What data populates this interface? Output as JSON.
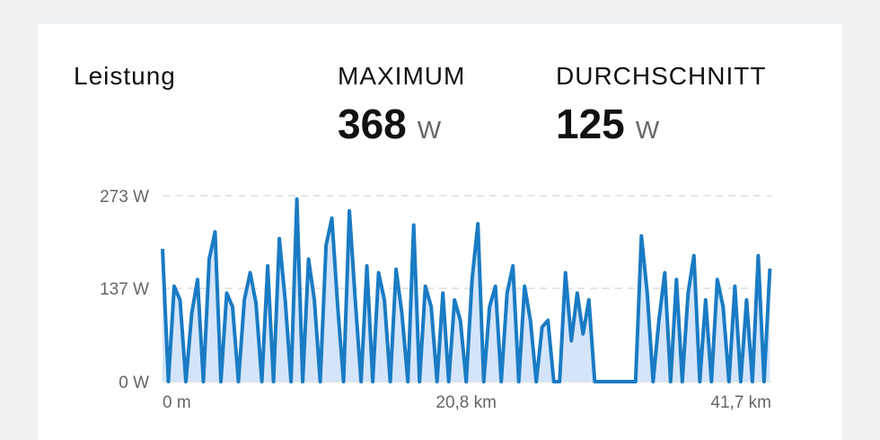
{
  "header": {
    "title": "Leistung",
    "max": {
      "label": "MAXIMUM",
      "value": "368",
      "unit": "W"
    },
    "avg": {
      "label": "DURCHSCHNITT",
      "value": "125",
      "unit": "W"
    }
  },
  "chart_data": {
    "type": "area",
    "color": "#1a7bc4",
    "fill_color": "#d4e5fb",
    "grid": true,
    "x": [
      0,
      0.4,
      0.8,
      1.2,
      1.6,
      2.0,
      2.4,
      2.8,
      3.2,
      3.6,
      4.0,
      4.4,
      4.8,
      5.2,
      5.6,
      6.0,
      6.4,
      6.8,
      7.2,
      7.6,
      8.0,
      8.4,
      8.8,
      9.2,
      9.6,
      10.0,
      10.4,
      10.8,
      11.2,
      11.6,
      12.0,
      12.4,
      12.8,
      13.2,
      13.6,
      14.0,
      14.4,
      14.8,
      15.2,
      15.6,
      16.0,
      16.4,
      16.8,
      17.2,
      17.6,
      18.0,
      18.4,
      18.8,
      19.2,
      19.6,
      20.0,
      20.4,
      20.8,
      21.2,
      21.6,
      22.0,
      22.4,
      22.8,
      23.2,
      23.6,
      24.0,
      24.4,
      24.8,
      25.2,
      25.6,
      26.0,
      26.4,
      26.8,
      27.2,
      27.6,
      28.0,
      28.4,
      28.8,
      29.2,
      29.6,
      30.0,
      30.4,
      30.8,
      31.2,
      31.6,
      32.0,
      32.4,
      32.8,
      33.2,
      33.6,
      34.0,
      34.4,
      34.8,
      35.2,
      35.6,
      36.0,
      36.4,
      36.8,
      37.2,
      37.6,
      38.0,
      38.4,
      38.8,
      39.2,
      39.6,
      40.0,
      40.4,
      40.8,
      41.2,
      41.6
    ],
    "values": [
      195,
      0,
      140,
      120,
      0,
      100,
      150,
      0,
      180,
      220,
      0,
      130,
      110,
      0,
      120,
      160,
      115,
      0,
      170,
      0,
      210,
      120,
      0,
      268,
      0,
      180,
      120,
      0,
      200,
      240,
      110,
      0,
      251,
      120,
      0,
      170,
      0,
      160,
      120,
      0,
      165,
      100,
      0,
      230,
      0,
      140,
      110,
      0,
      130,
      0,
      120,
      90,
      0,
      150,
      232,
      0,
      110,
      140,
      0,
      130,
      170,
      0,
      140,
      90,
      0,
      80,
      90,
      0,
      0,
      160,
      60,
      130,
      70,
      120,
      0,
      0,
      0,
      0,
      0,
      0,
      0,
      0,
      214,
      130,
      0,
      90,
      160,
      0,
      150,
      0,
      130,
      185,
      0,
      120,
      0,
      150,
      110,
      0,
      140,
      0,
      120,
      0,
      185,
      0,
      166
    ],
    "xlim": [
      0,
      41.7
    ],
    "xticks": [
      {
        "value": 0,
        "label": "0 m"
      },
      {
        "value": 20.8,
        "label": "20,8 km"
      },
      {
        "value": 41.7,
        "label": "41,7 km"
      }
    ],
    "ylim": [
      0,
      273
    ],
    "yticks": [
      {
        "value": 0,
        "label": "0 W"
      },
      {
        "value": 137,
        "label": "137 W"
      },
      {
        "value": 273,
        "label": "273 W"
      }
    ]
  }
}
